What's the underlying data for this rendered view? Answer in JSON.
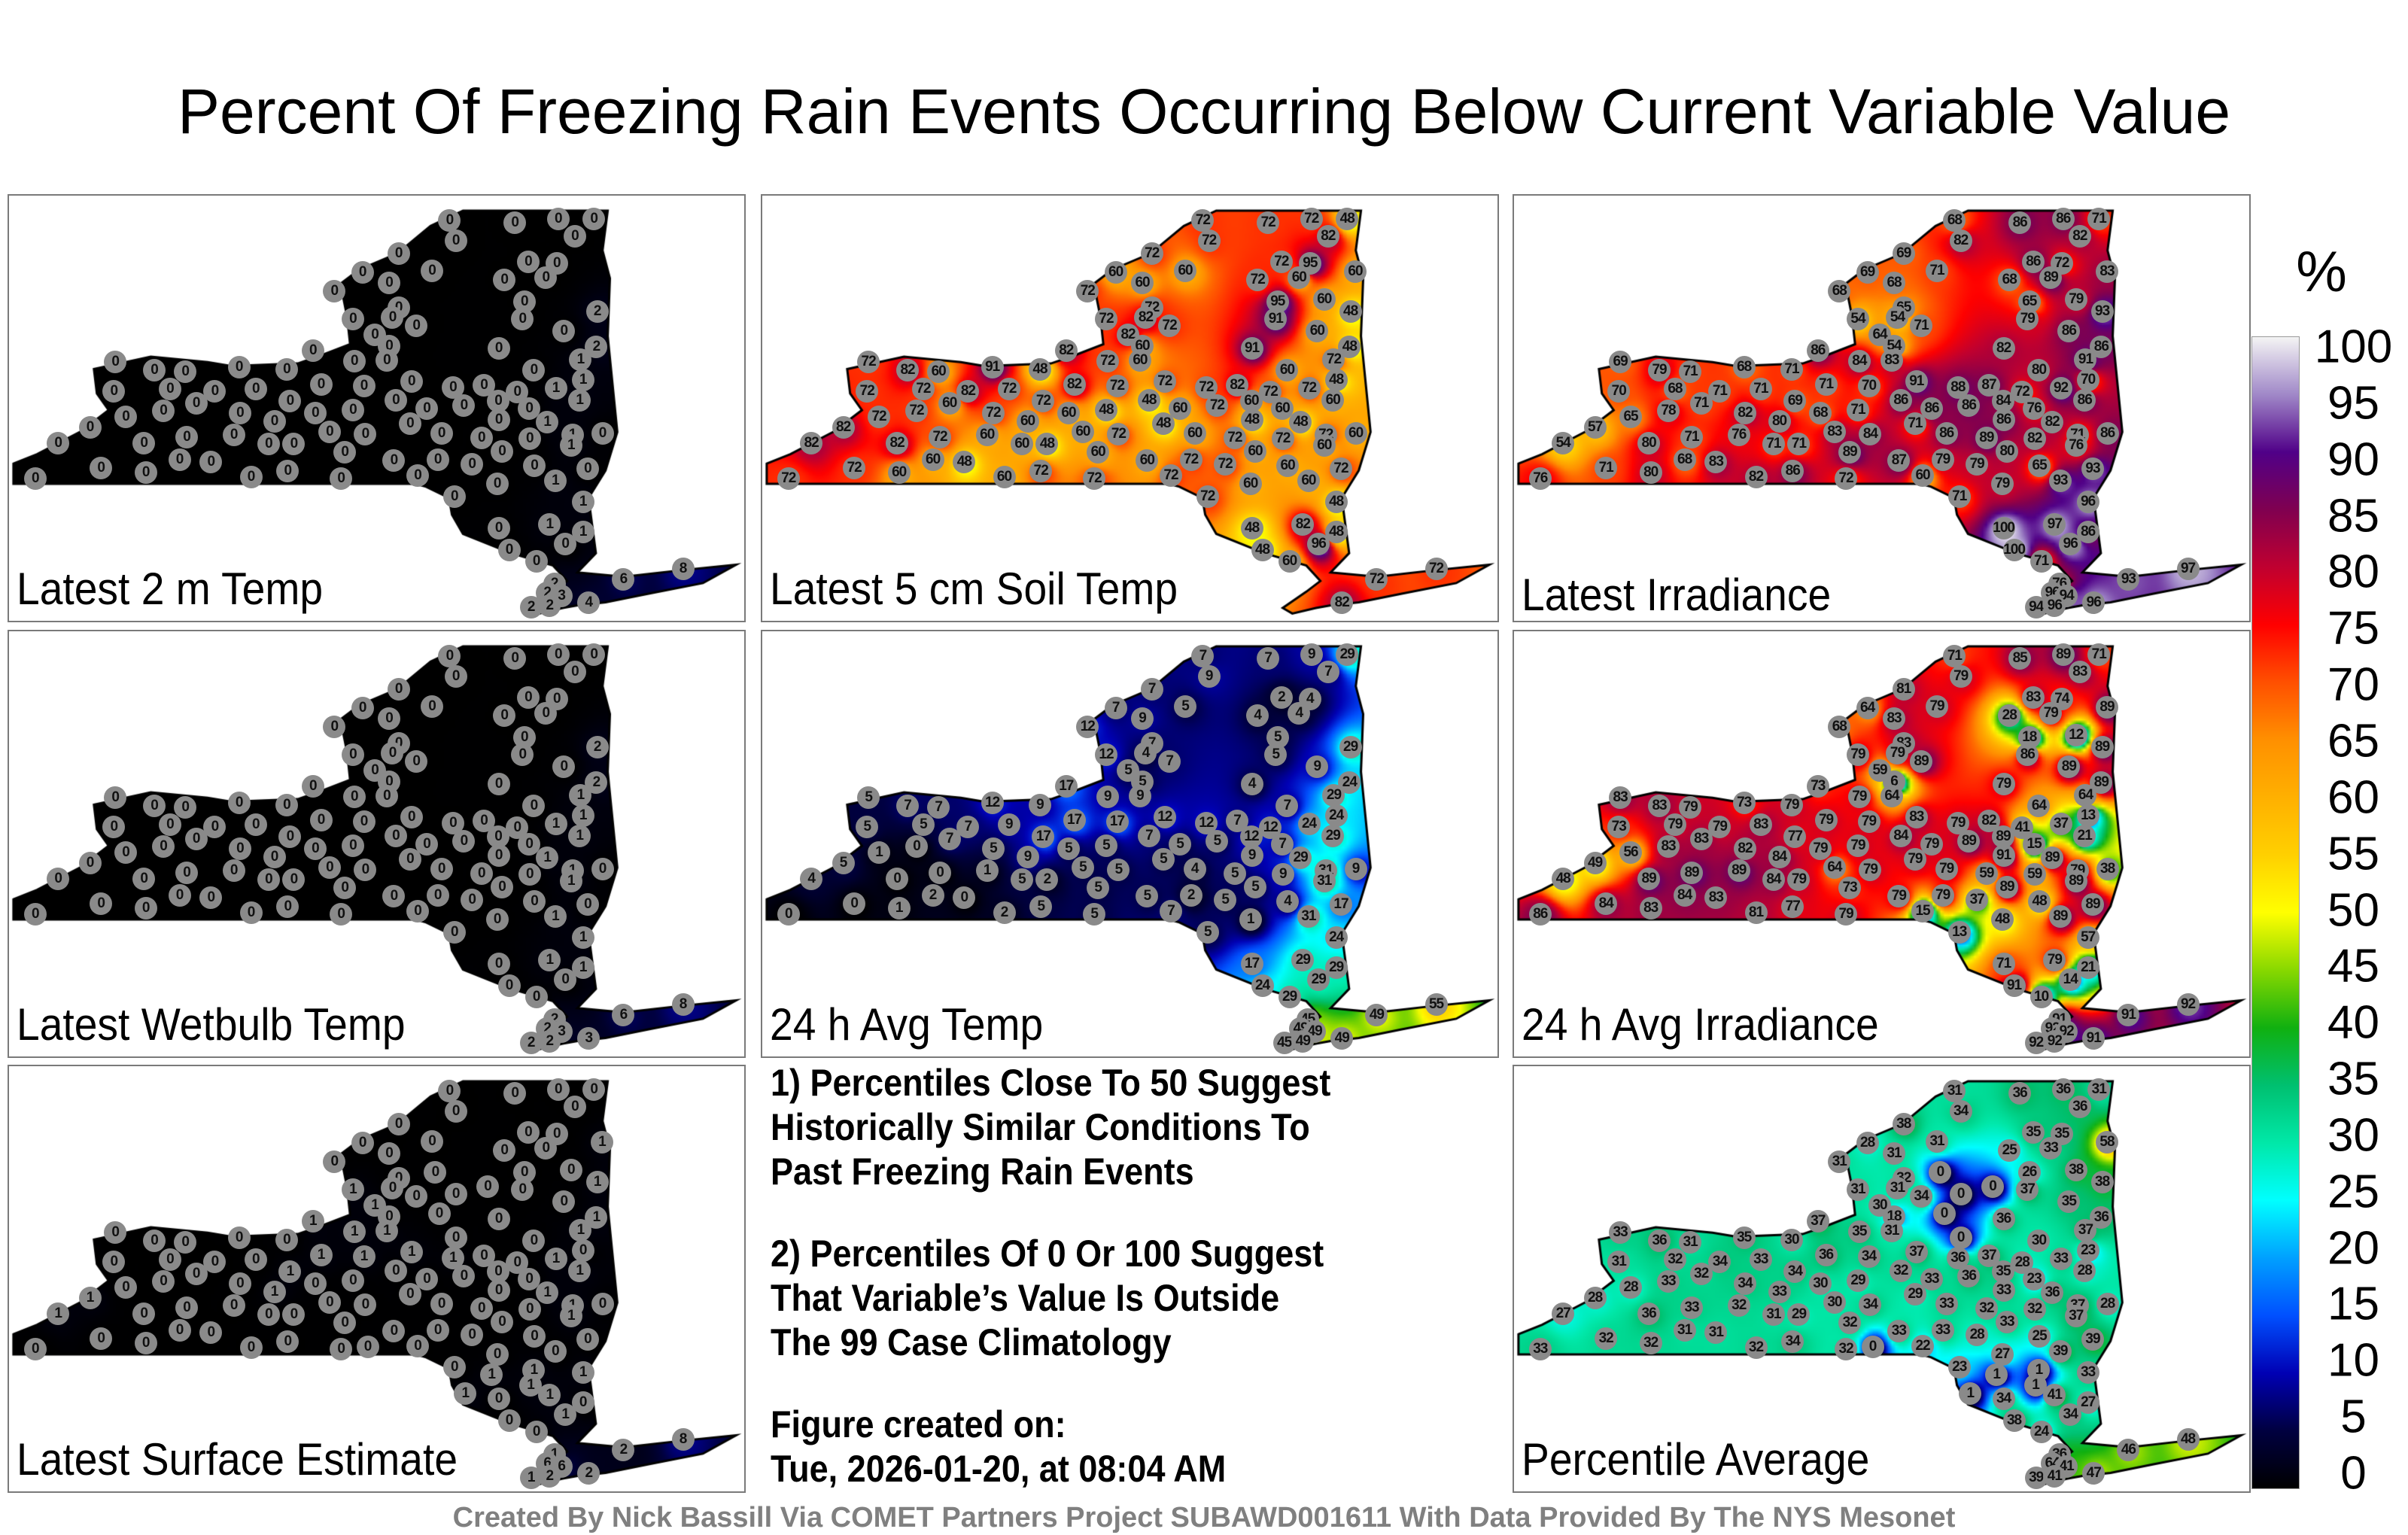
{
  "title": "Percent Of Freezing Rain Events Occurring Below Current Variable Value",
  "footer": "Created By Nick Bassill Via COMET Partners Project SUBAWD001611 With Data Provided By The NYS Mesonet",
  "notes": {
    "note1": [
      "1) Percentiles Close To 50 Suggest",
      "Historically Similar Conditions To",
      "Past Freezing Rain Events"
    ],
    "note2": [
      "2) Percentiles Of 0 Or 100 Suggest",
      "That Variable’s Value Is Outside",
      "The 99 Case Climatology"
    ],
    "created": [
      "Figure created on:",
      "Tue, 2026-01-20, at 08:04 AM"
    ]
  },
  "colorbar": {
    "unit": "%",
    "ticks": [
      "100",
      "95",
      "90",
      "85",
      "80",
      "75",
      "70",
      "65",
      "60",
      "55",
      "50",
      "45",
      "40",
      "35",
      "30",
      "25",
      "20",
      "15",
      "10",
      "5",
      "0"
    ],
    "stops": [
      [
        0,
        "#000000"
      ],
      [
        5,
        "#000040"
      ],
      [
        10,
        "#0000b4"
      ],
      [
        15,
        "#0050ff"
      ],
      [
        20,
        "#00a0ff"
      ],
      [
        25,
        "#00ffff"
      ],
      [
        30,
        "#00e8a8"
      ],
      [
        35,
        "#00c070"
      ],
      [
        40,
        "#10b010"
      ],
      [
        45,
        "#88d800"
      ],
      [
        50,
        "#ffff00"
      ],
      [
        55,
        "#ffd000"
      ],
      [
        60,
        "#ffb000"
      ],
      [
        65,
        "#ff9000"
      ],
      [
        70,
        "#ff5000"
      ],
      [
        75,
        "#ff0000"
      ],
      [
        80,
        "#c00030"
      ],
      [
        85,
        "#800050"
      ],
      [
        90,
        "#500088"
      ],
      [
        95,
        "#a088c8"
      ],
      [
        100,
        "#f4f4f4"
      ]
    ]
  },
  "chart_data": {
    "type": "heatmap",
    "title": "Percent Of Freezing Rain Events Occurring Below Current Variable Value",
    "value_range": [
      0,
      100
    ],
    "note": "Station percentile values per map panel; null = station not plotted",
    "panels": [
      {
        "label": "Latest 2 m Temp",
        "values": [
          0,
          0,
          0,
          0,
          0,
          0,
          0,
          0,
          0,
          0,
          null,
          0,
          0,
          0,
          0,
          0,
          null,
          0,
          null,
          0,
          2,
          0,
          0,
          null,
          null,
          0,
          0,
          0,
          0,
          null,
          0,
          0,
          2,
          0,
          0,
          0,
          0,
          1,
          0,
          0,
          0,
          0,
          null,
          0,
          1,
          0,
          0,
          0,
          0,
          0,
          0,
          0,
          0,
          0,
          0,
          1,
          1,
          0,
          0,
          0,
          0,
          0,
          0,
          0,
          0,
          0,
          0,
          0,
          0,
          0,
          0,
          1,
          0,
          0,
          0,
          0,
          0,
          1,
          0,
          0,
          0,
          0,
          0,
          0,
          0,
          0,
          0,
          1,
          0,
          0,
          0,
          0,
          0,
          0,
          0,
          0,
          0,
          0,
          0,
          0,
          0,
          0,
          0,
          null,
          0,
          0,
          1,
          0,
          null,
          null,
          1,
          null,
          null,
          1,
          0,
          1,
          0,
          0,
          0,
          8,
          6,
          2,
          2,
          3,
          4,
          2,
          2
        ]
      },
      {
        "label": "Latest 5 cm Soil Temp",
        "values": [
          72,
          72,
          72,
          48,
          72,
          82,
          72,
          60,
          72,
          95,
          60,
          72,
          60,
          60,
          60,
          72,
          null,
          95,
          60,
          72,
          48,
          72,
          82,
          null,
          null,
          91,
          72,
          82,
          60,
          null,
          60,
          91,
          48,
          82,
          72,
          72,
          60,
          72,
          82,
          60,
          91,
          48,
          null,
          60,
          48,
          72,
          72,
          82,
          72,
          82,
          72,
          72,
          72,
          82,
          72,
          72,
          60,
          60,
          72,
          48,
          60,
          72,
          72,
          60,
          48,
          60,
          72,
          60,
          72,
          60,
          48,
          48,
          82,
          48,
          60,
          72,
          60,
          72,
          60,
          60,
          72,
          72,
          72,
          82,
          82,
          60,
          48,
          60,
          60,
          60,
          60,
          48,
          60,
          72,
          72,
          60,
          72,
          72,
          60,
          72,
          72,
          60,
          72,
          null,
          72,
          60,
          60,
          72,
          null,
          null,
          48,
          null,
          null,
          82,
          48,
          48,
          96,
          48,
          60,
          72,
          72,
          null,
          null,
          null,
          82,
          null,
          null
        ]
      },
      {
        "label": "Latest Irradiance",
        "values": [
          68,
          86,
          86,
          71,
          82,
          82,
          69,
          71,
          86,
          72,
          83,
          68,
          89,
          69,
          68,
          68,
          null,
          65,
          79,
          65,
          93,
          54,
          54,
          null,
          null,
          79,
          71,
          64,
          86,
          null,
          54,
          82,
          86,
          86,
          69,
          84,
          83,
          91,
          79,
          71,
          68,
          71,
          null,
          80,
          70,
          70,
          68,
          71,
          71,
          71,
          70,
          91,
          88,
          87,
          72,
          92,
          86,
          71,
          69,
          86,
          84,
          78,
          82,
          68,
          71,
          86,
          86,
          76,
          65,
          80,
          86,
          82,
          57,
          71,
          83,
          84,
          86,
          71,
          86,
          76,
          71,
          89,
          82,
          80,
          54,
          71,
          71,
          76,
          89,
          80,
          68,
          83,
          87,
          79,
          79,
          65,
          93,
          71,
          80,
          86,
          76,
          82,
          72,
          null,
          60,
          79,
          93,
          71,
          null,
          null,
          96,
          null,
          null,
          97,
          100,
          86,
          96,
          100,
          71,
          97,
          93,
          76,
          96,
          94,
          96,
          94,
          96
        ]
      },
      {
        "label": "Latest Wetbulb Temp",
        "values": [
          0,
          0,
          0,
          0,
          0,
          0,
          0,
          0,
          0,
          0,
          null,
          0,
          0,
          0,
          0,
          0,
          null,
          0,
          null,
          0,
          2,
          0,
          0,
          null,
          null,
          0,
          0,
          0,
          0,
          null,
          0,
          0,
          2,
          0,
          0,
          0,
          0,
          1,
          0,
          0,
          0,
          0,
          null,
          0,
          1,
          0,
          0,
          0,
          0,
          0,
          0,
          0,
          0,
          0,
          0,
          1,
          1,
          0,
          0,
          0,
          0,
          0,
          0,
          0,
          0,
          0,
          0,
          0,
          0,
          0,
          0,
          1,
          0,
          0,
          0,
          0,
          0,
          1,
          0,
          0,
          0,
          0,
          0,
          0,
          0,
          0,
          0,
          1,
          0,
          0,
          0,
          0,
          0,
          0,
          0,
          0,
          0,
          0,
          0,
          0,
          0,
          0,
          0,
          null,
          0,
          0,
          1,
          0,
          null,
          null,
          1,
          null,
          null,
          1,
          0,
          1,
          0,
          0,
          0,
          8,
          6,
          2,
          2,
          3,
          3,
          2,
          2
        ]
      },
      {
        "label": "24 h Avg Temp",
        "values": [
          7,
          7,
          9,
          29,
          9,
          7,
          7,
          5,
          2,
          4,
          null,
          4,
          4,
          7,
          9,
          12,
          null,
          5,
          null,
          7,
          29,
          12,
          4,
          null,
          null,
          5,
          7,
          5,
          9,
          null,
          5,
          4,
          24,
          17,
          5,
          9,
          9,
          29,
          7,
          7,
          12,
          9,
          null,
          7,
          24,
          5,
          5,
          7,
          9,
          17,
          17,
          12,
          12,
          7,
          12,
          24,
          29,
          7,
          17,
          7,
          12,
          0,
          5,
          5,
          5,
          5,
          5,
          7,
          1,
          9,
          9,
          29,
          5,
          5,
          5,
          5,
          4,
          31,
          9,
          1,
          0,
          5,
          9,
          0,
          4,
          5,
          2,
          31,
          5,
          5,
          2,
          0,
          5,
          2,
          5,
          4,
          17,
          0,
          1,
          5,
          0,
          2,
          5,
          null,
          7,
          1,
          31,
          5,
          null,
          null,
          24,
          null,
          null,
          29,
          17,
          29,
          29,
          24,
          29,
          55,
          49,
          45,
          49,
          49,
          49,
          45,
          49
        ]
      },
      {
        "label": "24 h Avg Irradiance",
        "values": [
          71,
          85,
          89,
          71,
          79,
          83,
          81,
          79,
          83,
          74,
          89,
          28,
          79,
          64,
          83,
          68,
          null,
          18,
          12,
          83,
          89,
          79,
          79,
          null,
          null,
          86,
          89,
          59,
          89,
          null,
          6,
          79,
          89,
          73,
          83,
          79,
          64,
          64,
          83,
          79,
          73,
          79,
          null,
          64,
          13,
          73,
          79,
          79,
          83,
          79,
          79,
          83,
          79,
          82,
          41,
          37,
          21,
          83,
          77,
          84,
          89,
          83,
          82,
          79,
          79,
          79,
          89,
          15,
          56,
          84,
          91,
          89,
          49,
          79,
          64,
          79,
          79,
          79,
          38,
          89,
          89,
          59,
          59,
          89,
          48,
          84,
          79,
          89,
          73,
          89,
          84,
          83,
          79,
          79,
          37,
          48,
          89,
          84,
          83,
          77,
          86,
          81,
          79,
          null,
          15,
          48,
          89,
          13,
          null,
          null,
          57,
          null,
          null,
          79,
          71,
          21,
          14,
          91,
          10,
          92,
          91,
          91,
          92,
          92,
          91,
          92,
          92
        ]
      },
      {
        "label": "Latest Surface Estimate",
        "values": [
          0,
          0,
          0,
          0,
          0,
          0,
          0,
          0,
          0,
          0,
          1,
          0,
          0,
          0,
          0,
          0,
          0,
          0,
          0,
          0,
          1,
          1,
          0,
          0,
          0,
          0,
          0,
          1,
          0,
          0,
          0,
          0,
          1,
          1,
          0,
          1,
          1,
          1,
          0,
          0,
          0,
          0,
          0,
          0,
          0,
          0,
          0,
          0,
          0,
          1,
          1,
          1,
          1,
          0,
          0,
          1,
          1,
          0,
          1,
          0,
          0,
          0,
          0,
          0,
          0,
          0,
          0,
          0,
          0,
          1,
          0,
          1,
          1,
          0,
          0,
          0,
          0,
          1,
          0,
          0,
          0,
          0,
          0,
          0,
          1,
          0,
          0,
          1,
          0,
          0,
          0,
          0,
          0,
          0,
          0,
          0,
          0,
          0,
          0,
          0,
          0,
          0,
          0,
          0,
          0,
          0,
          0,
          0,
          1,
          1,
          1,
          1,
          1,
          1,
          0,
          0,
          1,
          0,
          0,
          8,
          2,
          1,
          6,
          6,
          2,
          1,
          2
        ]
      },
      null,
      {
        "label": "Percentile Average",
        "values": [
          31,
          36,
          36,
          31,
          34,
          36,
          38,
          31,
          35,
          35,
          58,
          25,
          33,
          28,
          31,
          31,
          0,
          26,
          38,
          32,
          38,
          31,
          31,
          0,
          0,
          37,
          34,
          30,
          35,
          0,
          18,
          36,
          36,
          37,
          33,
          35,
          31,
          37,
          36,
          31,
          35,
          30,
          0,
          30,
          23,
          31,
          32,
          34,
          33,
          36,
          34,
          37,
          36,
          37,
          28,
          33,
          28,
          32,
          34,
          32,
          35,
          33,
          34,
          30,
          29,
          33,
          36,
          23,
          28,
          33,
          33,
          36,
          28,
          29,
          30,
          34,
          33,
          37,
          28,
          32,
          33,
          32,
          32,
          36,
          27,
          31,
          29,
          37,
          32,
          33,
          31,
          31,
          33,
          33,
          28,
          25,
          39,
          32,
          32,
          34,
          33,
          32,
          32,
          0,
          22,
          27,
          39,
          23,
          1,
          1,
          33,
          1,
          1,
          41,
          34,
          27,
          34,
          38,
          24,
          48,
          46,
          36,
          64,
          41,
          47,
          39,
          41
        ]
      }
    ]
  }
}
